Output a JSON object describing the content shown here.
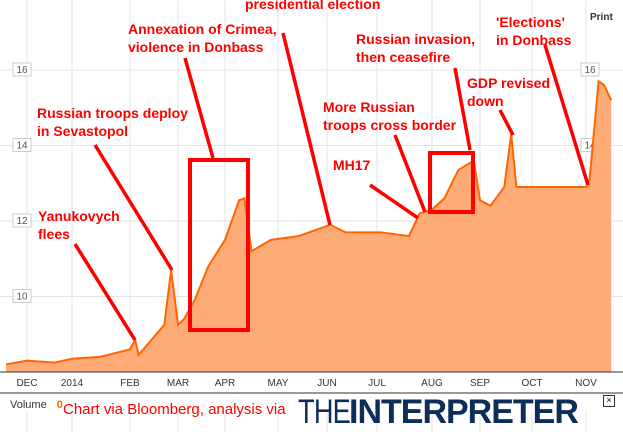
{
  "chart_data": {
    "type": "area",
    "xlabel": "",
    "ylabel": "",
    "ylim": [
      8,
      16.5
    ],
    "grid": true,
    "x_ticks": [
      "DEC",
      "2014",
      "FEB",
      "MAR",
      "APR",
      "MAY",
      "JUN",
      "JUL",
      "AUG",
      "SEP",
      "OCT",
      "NOV"
    ],
    "y_ticks": [
      10,
      12,
      14,
      16
    ],
    "colors": {
      "line": "#ff6600",
      "fill": "#ffab78",
      "annotation": "#ff0000"
    },
    "points": [
      [
        "2013-11-16",
        8.2
      ],
      [
        "2013-12-01",
        8.3
      ],
      [
        "2013-12-20",
        8.25
      ],
      [
        "2014-01-01",
        8.35
      ],
      [
        "2014-01-16",
        8.4
      ],
      [
        "2014-02-01",
        8.6
      ],
      [
        "2014-02-04",
        8.85
      ],
      [
        "2014-02-06",
        8.45
      ],
      [
        "2014-02-21",
        9.25
      ],
      [
        "2014-02-25",
        10.7
      ],
      [
        "2014-03-01",
        9.25
      ],
      [
        "2014-03-05",
        9.4
      ],
      [
        "2014-03-12",
        9.9
      ],
      [
        "2014-03-21",
        10.8
      ],
      [
        "2014-04-01",
        11.5
      ],
      [
        "2014-04-09",
        12.55
      ],
      [
        "2014-04-12",
        12.6
      ],
      [
        "2014-04-16",
        11.2
      ],
      [
        "2014-04-27",
        11.5
      ],
      [
        "2014-05-14",
        11.6
      ],
      [
        "2014-06-03",
        11.9
      ],
      [
        "2014-06-12",
        11.7
      ],
      [
        "2014-07-03",
        11.7
      ],
      [
        "2014-07-19",
        11.6
      ],
      [
        "2014-07-25",
        12.2
      ],
      [
        "2014-08-01",
        12.3
      ],
      [
        "2014-08-09",
        12.6
      ],
      [
        "2014-08-18",
        13.35
      ],
      [
        "2014-08-28",
        13.6
      ],
      [
        "2014-09-01",
        12.55
      ],
      [
        "2014-09-07",
        12.4
      ],
      [
        "2014-09-15",
        12.9
      ],
      [
        "2014-09-19",
        14.3
      ],
      [
        "2014-09-22",
        12.9
      ],
      [
        "2014-10-01",
        12.9
      ],
      [
        "2014-11-01",
        12.9
      ],
      [
        "2014-11-03",
        13.1
      ],
      [
        "2014-11-08",
        15.7
      ],
      [
        "2014-11-11",
        15.6
      ],
      [
        "2014-11-15",
        15.2
      ]
    ],
    "annotations": [
      "Yanukovych\nflees",
      "Russian troops deploy\nin Sevastopol",
      "Annexation of Crimea,\nviolence in Donbass",
      "presidential election",
      "MH17",
      "More Russian\ntroops cross border",
      "Russian invasion,\nthen ceasefire",
      "GDP revised\ndown",
      "'Elections'\nin Donbass"
    ]
  },
  "toolbar": {
    "print": "Print",
    "close": "×"
  },
  "volume": {
    "label": "Volume",
    "value": "0"
  },
  "credit": "Chart via Bloomberg, analysis via",
  "logo": {
    "thin": "THE",
    "bold": "INTERPRETER"
  }
}
